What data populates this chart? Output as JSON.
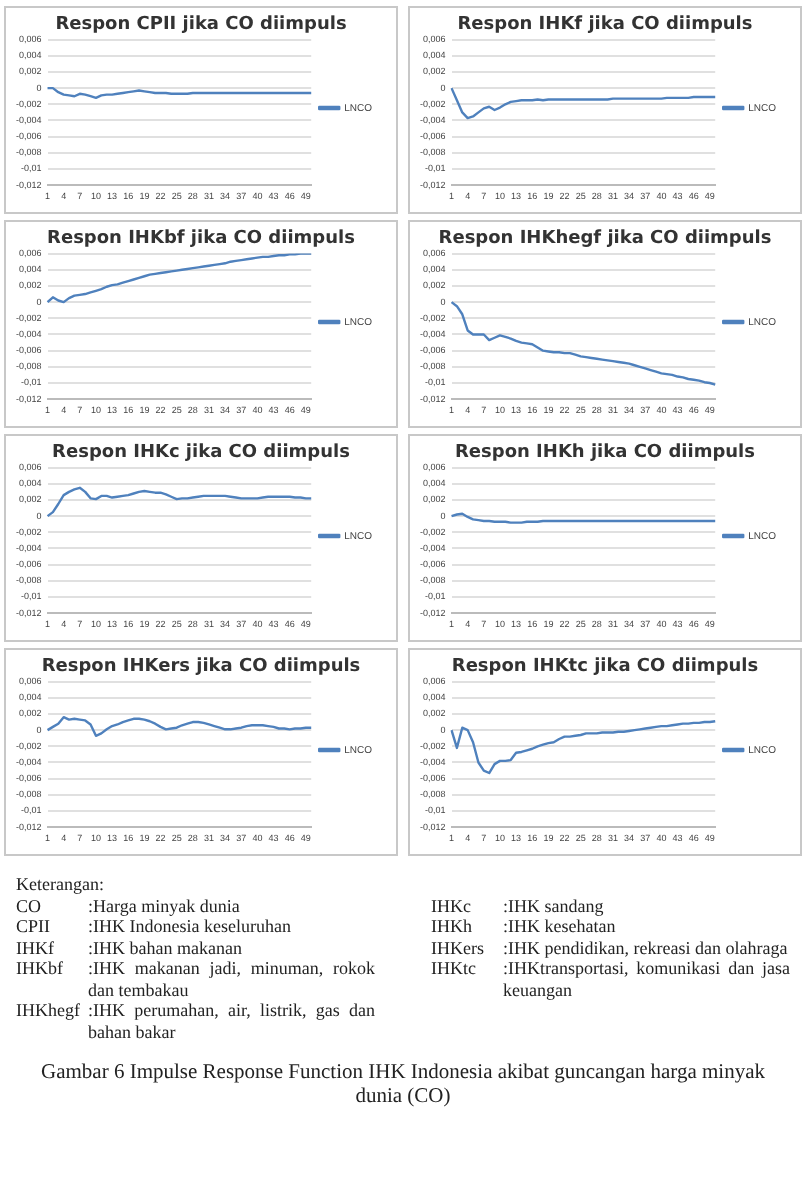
{
  "chart_data": [
    {
      "type": "line",
      "title": "Respon CPII jika CO diimpuls",
      "legend": "right",
      "grid": "y",
      "ylim": [
        -0.012,
        0.006
      ],
      "yticks": [
        {
          "value": -0.012,
          "label": "-0,012"
        },
        {
          "value": -0.01,
          "label": "-0,01"
        },
        {
          "value": -0.008,
          "label": "-0,008"
        },
        {
          "value": -0.006,
          "label": "-0,006"
        },
        {
          "value": -0.004,
          "label": "-0,004"
        },
        {
          "value": -0.002,
          "label": "-0,002"
        },
        {
          "value": 0,
          "label": "0"
        },
        {
          "value": 0.002,
          "label": "0,002"
        },
        {
          "value": 0.004,
          "label": "0,004"
        },
        {
          "value": 0.006,
          "label": "0,006"
        }
      ],
      "categories": [
        "1",
        null,
        null,
        "4",
        null,
        null,
        "7",
        null,
        null,
        "10",
        null,
        null,
        "13",
        null,
        null,
        "16",
        null,
        null,
        "19",
        null,
        null,
        "22",
        null,
        null,
        "25",
        null,
        null,
        "28",
        null,
        null,
        "31",
        null,
        null,
        "34",
        null,
        null,
        "37",
        null,
        null,
        "40",
        null,
        null,
        "43",
        null,
        null,
        "46",
        null,
        null,
        "49",
        null
      ],
      "series": [
        {
          "name": "LNCO",
          "color": "#4f81bd",
          "values": [
            0,
            0,
            -0.0005,
            -0.0008,
            -0.0009,
            -0.001,
            -0.0007,
            -0.0008,
            -0.001,
            -0.0012,
            -0.0009,
            -0.0008,
            -0.0008,
            -0.0007,
            -0.0006,
            -0.0005,
            -0.0004,
            -0.0003,
            -0.0004,
            -0.0005,
            -0.0006,
            -0.0006,
            -0.0006,
            -0.0007,
            -0.0007,
            -0.0007,
            -0.0007,
            -0.0006,
            -0.0006,
            -0.0006,
            -0.0006,
            -0.0006,
            -0.0006,
            -0.0006,
            -0.0006,
            -0.0006,
            -0.0006,
            -0.0006,
            -0.0006,
            -0.0006,
            -0.0006,
            -0.0006,
            -0.0006,
            -0.0006,
            -0.0006,
            -0.0006,
            -0.0006,
            -0.0006,
            -0.0006,
            -0.0006
          ]
        }
      ]
    },
    {
      "type": "line",
      "title": "Respon IHKf jika CO diimpuls",
      "legend": "right",
      "grid": "y",
      "ylim": [
        -0.012,
        0.006
      ],
      "yticks": [
        {
          "value": -0.012,
          "label": "-0,012"
        },
        {
          "value": -0.01,
          "label": "-0,01"
        },
        {
          "value": -0.008,
          "label": "-0,008"
        },
        {
          "value": -0.006,
          "label": "-0,006"
        },
        {
          "value": -0.004,
          "label": "-0,004"
        },
        {
          "value": -0.002,
          "label": "-0,002"
        },
        {
          "value": 0,
          "label": "0"
        },
        {
          "value": 0.002,
          "label": "0,002"
        },
        {
          "value": 0.004,
          "label": "0,004"
        },
        {
          "value": 0.006,
          "label": "0,006"
        }
      ],
      "categories": [
        "1",
        null,
        null,
        "4",
        null,
        null,
        "7",
        null,
        null,
        "10",
        null,
        null,
        "13",
        null,
        null,
        "16",
        null,
        null,
        "19",
        null,
        null,
        "22",
        null,
        null,
        "25",
        null,
        null,
        "28",
        null,
        null,
        "31",
        null,
        null,
        "34",
        null,
        null,
        "37",
        null,
        null,
        "40",
        null,
        null,
        "43",
        null,
        null,
        "46",
        null,
        null,
        "49",
        null
      ],
      "series": [
        {
          "name": "LNCO",
          "color": "#4f81bd",
          "values": [
            0,
            -0.0015,
            -0.003,
            -0.0037,
            -0.0035,
            -0.003,
            -0.0025,
            -0.0023,
            -0.0027,
            -0.0024,
            -0.002,
            -0.0017,
            -0.0016,
            -0.0015,
            -0.0015,
            -0.0015,
            -0.0014,
            -0.0015,
            -0.0014,
            -0.0014,
            -0.0014,
            -0.0014,
            -0.0014,
            -0.0014,
            -0.0014,
            -0.0014,
            -0.0014,
            -0.0014,
            -0.0014,
            -0.0014,
            -0.0013,
            -0.0013,
            -0.0013,
            -0.0013,
            -0.0013,
            -0.0013,
            -0.0013,
            -0.0013,
            -0.0013,
            -0.0013,
            -0.0012,
            -0.0012,
            -0.0012,
            -0.0012,
            -0.0012,
            -0.0011,
            -0.0011,
            -0.0011,
            -0.0011,
            -0.0011
          ]
        }
      ]
    },
    {
      "type": "line",
      "title": "Respon IHKbf jika CO diimpuls",
      "legend": "right",
      "grid": "y",
      "ylim": [
        -0.012,
        0.006
      ],
      "yticks": [
        {
          "value": -0.012,
          "label": "-0,012"
        },
        {
          "value": -0.01,
          "label": "-0,01"
        },
        {
          "value": -0.008,
          "label": "-0,008"
        },
        {
          "value": -0.006,
          "label": "-0,006"
        },
        {
          "value": -0.004,
          "label": "-0,004"
        },
        {
          "value": -0.002,
          "label": "-0,002"
        },
        {
          "value": 0,
          "label": "0"
        },
        {
          "value": 0.002,
          "label": "0,002"
        },
        {
          "value": 0.004,
          "label": "0,004"
        },
        {
          "value": 0.006,
          "label": "0,006"
        }
      ],
      "categories": [
        "1",
        null,
        null,
        "4",
        null,
        null,
        "7",
        null,
        null,
        "10",
        null,
        null,
        "13",
        null,
        null,
        "16",
        null,
        null,
        "19",
        null,
        null,
        "22",
        null,
        null,
        "25",
        null,
        null,
        "28",
        null,
        null,
        "31",
        null,
        null,
        "34",
        null,
        null,
        "37",
        null,
        null,
        "40",
        null,
        null,
        "43",
        null,
        null,
        "46",
        null,
        null,
        "49",
        null
      ],
      "series": [
        {
          "name": "LNCO",
          "color": "#4f81bd",
          "values": [
            0,
            0.0006,
            0.0002,
            0,
            0.0005,
            0.0008,
            0.0009,
            0.001,
            0.0012,
            0.0014,
            0.0016,
            0.0019,
            0.0021,
            0.0022,
            0.0024,
            0.0026,
            0.0028,
            0.003,
            0.0032,
            0.0034,
            0.0035,
            0.0036,
            0.0037,
            0.0038,
            0.0039,
            0.004,
            0.0041,
            0.0042,
            0.0043,
            0.0044,
            0.0045,
            0.0046,
            0.0047,
            0.0048,
            0.005,
            0.0051,
            0.0052,
            0.0053,
            0.0054,
            0.0055,
            0.0056,
            0.0056,
            0.0057,
            0.0058,
            0.0058,
            0.0059,
            0.0059,
            0.006,
            0.006,
            0.006
          ]
        }
      ]
    },
    {
      "type": "line",
      "title": "Respon IHKhegf jika CO diimpuls",
      "legend": "right",
      "grid": "y",
      "ylim": [
        -0.012,
        0.006
      ],
      "yticks": [
        {
          "value": -0.012,
          "label": "-0,012"
        },
        {
          "value": -0.01,
          "label": "-0,01"
        },
        {
          "value": -0.008,
          "label": "-0,008"
        },
        {
          "value": -0.006,
          "label": "-0,006"
        },
        {
          "value": -0.004,
          "label": "-0,004"
        },
        {
          "value": -0.002,
          "label": "-0,002"
        },
        {
          "value": 0,
          "label": "0"
        },
        {
          "value": 0.002,
          "label": "0,002"
        },
        {
          "value": 0.004,
          "label": "0,004"
        },
        {
          "value": 0.006,
          "label": "0,006"
        }
      ],
      "categories": [
        "1",
        null,
        null,
        "4",
        null,
        null,
        "7",
        null,
        null,
        "10",
        null,
        null,
        "13",
        null,
        null,
        "16",
        null,
        null,
        "19",
        null,
        null,
        "22",
        null,
        null,
        "25",
        null,
        null,
        "28",
        null,
        null,
        "31",
        null,
        null,
        "34",
        null,
        null,
        "37",
        null,
        null,
        "40",
        null,
        null,
        "43",
        null,
        null,
        "46",
        null,
        null,
        "49",
        null
      ],
      "series": [
        {
          "name": "LNCO",
          "color": "#4f81bd",
          "values": [
            0,
            -0.0005,
            -0.0015,
            -0.0035,
            -0.004,
            -0.004,
            -0.004,
            -0.0047,
            -0.0044,
            -0.0041,
            -0.0043,
            -0.0045,
            -0.0048,
            -0.005,
            -0.0051,
            -0.0052,
            -0.0056,
            -0.006,
            -0.0061,
            -0.0062,
            -0.0062,
            -0.0063,
            -0.0063,
            -0.0065,
            -0.0067,
            -0.0068,
            -0.0069,
            -0.007,
            -0.0071,
            -0.0072,
            -0.0073,
            -0.0074,
            -0.0075,
            -0.0076,
            -0.0078,
            -0.008,
            -0.0082,
            -0.0084,
            -0.0086,
            -0.0088,
            -0.0089,
            -0.009,
            -0.0092,
            -0.0093,
            -0.0095,
            -0.0096,
            -0.0097,
            -0.0099,
            -0.01,
            -0.0102
          ]
        }
      ]
    },
    {
      "type": "line",
      "title": "Respon IHKc jika CO diimpuls",
      "legend": "right",
      "grid": "y",
      "ylim": [
        -0.012,
        0.006
      ],
      "yticks": [
        {
          "value": -0.012,
          "label": "-0,012"
        },
        {
          "value": -0.01,
          "label": "-0,01"
        },
        {
          "value": -0.008,
          "label": "-0,008"
        },
        {
          "value": -0.006,
          "label": "-0,006"
        },
        {
          "value": -0.004,
          "label": "-0,004"
        },
        {
          "value": -0.002,
          "label": "-0,002"
        },
        {
          "value": 0,
          "label": "0"
        },
        {
          "value": 0.002,
          "label": "0,002"
        },
        {
          "value": 0.004,
          "label": "0,004"
        },
        {
          "value": 0.006,
          "label": "0,006"
        }
      ],
      "categories": [
        "1",
        null,
        null,
        "4",
        null,
        null,
        "7",
        null,
        null,
        "10",
        null,
        null,
        "13",
        null,
        null,
        "16",
        null,
        null,
        "19",
        null,
        null,
        "22",
        null,
        null,
        "25",
        null,
        null,
        "28",
        null,
        null,
        "31",
        null,
        null,
        "34",
        null,
        null,
        "37",
        null,
        null,
        "40",
        null,
        null,
        "43",
        null,
        null,
        "46",
        null,
        null,
        "49",
        null
      ],
      "series": [
        {
          "name": "LNCO",
          "color": "#4f81bd",
          "values": [
            0,
            0.0005,
            0.0015,
            0.0026,
            0.003,
            0.0033,
            0.0035,
            0.003,
            0.0022,
            0.0021,
            0.0025,
            0.0025,
            0.0023,
            0.0024,
            0.0025,
            0.0026,
            0.0028,
            0.003,
            0.0031,
            0.003,
            0.0029,
            0.0029,
            0.0027,
            0.0024,
            0.0021,
            0.0022,
            0.0022,
            0.0023,
            0.0024,
            0.0025,
            0.0025,
            0.0025,
            0.0025,
            0.0025,
            0.0024,
            0.0023,
            0.0022,
            0.0022,
            0.0022,
            0.0022,
            0.0023,
            0.0024,
            0.0024,
            0.0024,
            0.0024,
            0.0024,
            0.0023,
            0.0023,
            0.0022,
            0.0022
          ]
        }
      ]
    },
    {
      "type": "line",
      "title": "Respon IHKh jika CO diimpuls",
      "legend": "right",
      "grid": "y",
      "ylim": [
        -0.012,
        0.006
      ],
      "yticks": [
        {
          "value": -0.012,
          "label": "-0,012"
        },
        {
          "value": -0.01,
          "label": "-0,01"
        },
        {
          "value": -0.008,
          "label": "-0,008"
        },
        {
          "value": -0.006,
          "label": "-0,006"
        },
        {
          "value": -0.004,
          "label": "-0,004"
        },
        {
          "value": -0.002,
          "label": "-0,002"
        },
        {
          "value": 0,
          "label": "0"
        },
        {
          "value": 0.002,
          "label": "0,002"
        },
        {
          "value": 0.004,
          "label": "0,004"
        },
        {
          "value": 0.006,
          "label": "0,006"
        }
      ],
      "categories": [
        "1",
        null,
        null,
        "4",
        null,
        null,
        "7",
        null,
        null,
        "10",
        null,
        null,
        "13",
        null,
        null,
        "16",
        null,
        null,
        "19",
        null,
        null,
        "22",
        null,
        null,
        "25",
        null,
        null,
        "28",
        null,
        null,
        "31",
        null,
        null,
        "34",
        null,
        null,
        "37",
        null,
        null,
        "40",
        null,
        null,
        "43",
        null,
        null,
        "46",
        null,
        null,
        "49",
        null
      ],
      "series": [
        {
          "name": "LNCO",
          "color": "#4f81bd",
          "values": [
            0,
            0.0002,
            0.0003,
            -0.0001,
            -0.0004,
            -0.0005,
            -0.0006,
            -0.0006,
            -0.0007,
            -0.0007,
            -0.0007,
            -0.0008,
            -0.0008,
            -0.0008,
            -0.0007,
            -0.0007,
            -0.0007,
            -0.0006,
            -0.0006,
            -0.0006,
            -0.0006,
            -0.0006,
            -0.0006,
            -0.0006,
            -0.0006,
            -0.0006,
            -0.0006,
            -0.0006,
            -0.0006,
            -0.0006,
            -0.0006,
            -0.0006,
            -0.0006,
            -0.0006,
            -0.0006,
            -0.0006,
            -0.0006,
            -0.0006,
            -0.0006,
            -0.0006,
            -0.0006,
            -0.0006,
            -0.0006,
            -0.0006,
            -0.0006,
            -0.0006,
            -0.0006,
            -0.0006,
            -0.0006,
            -0.0006
          ]
        }
      ]
    },
    {
      "type": "line",
      "title": "Respon IHKers jika CO diimpuls",
      "legend": "right",
      "grid": "y",
      "ylim": [
        -0.012,
        0.006
      ],
      "yticks": [
        {
          "value": -0.012,
          "label": "-0,012"
        },
        {
          "value": -0.01,
          "label": "-0,01"
        },
        {
          "value": -0.008,
          "label": "-0,008"
        },
        {
          "value": -0.006,
          "label": "-0,006"
        },
        {
          "value": -0.004,
          "label": "-0,004"
        },
        {
          "value": -0.002,
          "label": "-0,002"
        },
        {
          "value": 0,
          "label": "0"
        },
        {
          "value": 0.002,
          "label": "0,002"
        },
        {
          "value": 0.004,
          "label": "0,004"
        },
        {
          "value": 0.006,
          "label": "0,006"
        }
      ],
      "categories": [
        "1",
        null,
        null,
        "4",
        null,
        null,
        "7",
        null,
        null,
        "10",
        null,
        null,
        "13",
        null,
        null,
        "16",
        null,
        null,
        "19",
        null,
        null,
        "22",
        null,
        null,
        "25",
        null,
        null,
        "28",
        null,
        null,
        "31",
        null,
        null,
        "34",
        null,
        null,
        "37",
        null,
        null,
        "40",
        null,
        null,
        "43",
        null,
        null,
        "46",
        null,
        null,
        "49",
        null
      ],
      "series": [
        {
          "name": "LNCO",
          "color": "#4f81bd",
          "values": [
            0,
            0.0004,
            0.0008,
            0.0016,
            0.0013,
            0.0014,
            0.0013,
            0.0012,
            0.0007,
            -0.0007,
            -0.0004,
            0.0001,
            0.0005,
            0.0007,
            0.001,
            0.0012,
            0.0014,
            0.0014,
            0.0013,
            0.0011,
            0.0008,
            0.0004,
            0.0001,
            0.0002,
            0.0003,
            0.0006,
            0.0008,
            0.001,
            0.001,
            0.0009,
            0.0007,
            0.0005,
            0.0003,
            0.0001,
            0.0001,
            0.0002,
            0.0003,
            0.0005,
            0.0006,
            0.0006,
            0.0006,
            0.0005,
            0.0004,
            0.0002,
            0.0002,
            0.0001,
            0.0002,
            0.0002,
            0.0003,
            0.0003
          ]
        }
      ]
    },
    {
      "type": "line",
      "title": "Respon IHKtc jika CO diimpuls",
      "legend": "right",
      "grid": "y",
      "ylim": [
        -0.012,
        0.006
      ],
      "yticks": [
        {
          "value": -0.012,
          "label": "-0,012"
        },
        {
          "value": -0.01,
          "label": "-0,01"
        },
        {
          "value": -0.008,
          "label": "-0,008"
        },
        {
          "value": -0.006,
          "label": "-0,006"
        },
        {
          "value": -0.004,
          "label": "-0,004"
        },
        {
          "value": -0.002,
          "label": "-0,002"
        },
        {
          "value": 0,
          "label": "0"
        },
        {
          "value": 0.002,
          "label": "0,002"
        },
        {
          "value": 0.004,
          "label": "0,004"
        },
        {
          "value": 0.006,
          "label": "0,006"
        }
      ],
      "categories": [
        "1",
        null,
        null,
        "4",
        null,
        null,
        "7",
        null,
        null,
        "10",
        null,
        null,
        "13",
        null,
        null,
        "16",
        null,
        null,
        "19",
        null,
        null,
        "22",
        null,
        null,
        "25",
        null,
        null,
        "28",
        null,
        null,
        "31",
        null,
        null,
        "34",
        null,
        null,
        "37",
        null,
        null,
        "40",
        null,
        null,
        "43",
        null,
        null,
        "46",
        null,
        null,
        "49",
        null
      ],
      "series": [
        {
          "name": "LNCO",
          "color": "#4f81bd",
          "values": [
            0,
            -0.0022,
            0.0003,
            0,
            -0.0015,
            -0.004,
            -0.005,
            -0.0053,
            -0.0042,
            -0.0038,
            -0.0038,
            -0.0037,
            -0.0028,
            -0.0027,
            -0.0025,
            -0.0023,
            -0.002,
            -0.0018,
            -0.0016,
            -0.0015,
            -0.0011,
            -0.0008,
            -0.0008,
            -0.0007,
            -0.0006,
            -0.0004,
            -0.0004,
            -0.0004,
            -0.0003,
            -0.0003,
            -0.0003,
            -0.0002,
            -0.0002,
            -0.0001,
            0,
            0.0001,
            0.0002,
            0.0003,
            0.0004,
            0.0005,
            0.0005,
            0.0006,
            0.0007,
            0.0008,
            0.0008,
            0.0009,
            0.0009,
            0.001,
            0.001,
            0.0011
          ]
        }
      ]
    },
    {
      "type": "other",
      "title": "Keterangan:",
      "subtitle": "Gambar 6 Impulse Response Function IHK Indonesia akibat guncangan harga minyak dunia (CO)",
      "annotations": [
        "CO\t:Harga minyak dunia",
        "CPII\t:IHK Indonesia keseluruhan",
        "IHKf\t:IHK bahan makanan",
        "IHKbf\t:IHK makanan jadi, minuman, rokok dan tembakau",
        "IHKhegf\t:IHK perumahan, air, listrik, gas dan bahan bakar",
        "IHKc\t:IHK sandang",
        "IHKh\t:IHK kesehatan",
        "IHKers\t:IHK pendidikan, rekreasi dan olahraga",
        "IHKtc\t:IHKtransportasi, komunikasi dan jasa keuangan"
      ]
    }
  ]
}
